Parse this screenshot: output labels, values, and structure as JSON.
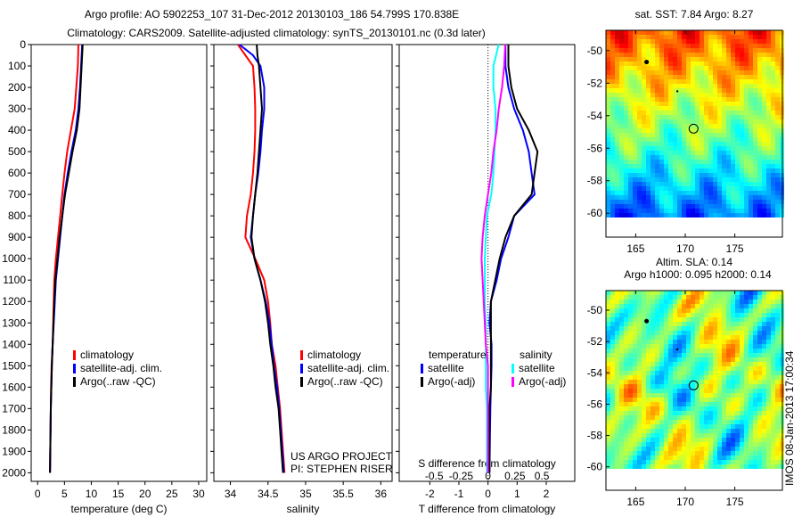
{
  "title_line1": "Argo profile: AO 5902253_107 31-Dec-2012 20130103_186 54.799S 170.838E",
  "title_line2": "Climatology: CARS2009. Satellite-adjusted climatology: synTS_20130101.nc (0.3d later)",
  "colors": {
    "clim": "#ff0000",
    "sat": "#0000ff",
    "argo": "#000000",
    "s_sat": "#00ffff",
    "s_argo": "#ff00ff"
  },
  "chart_data": [
    {
      "type": "line",
      "id": "temperature",
      "xlabel": "temperature (deg C)",
      "ylabel": "",
      "xlim": [
        -1.2,
        31.5
      ],
      "ylim": [
        2040,
        0
      ],
      "xticks": [
        0,
        5,
        10,
        15,
        20,
        25,
        30
      ],
      "yticks": [
        0,
        100,
        200,
        300,
        400,
        500,
        600,
        700,
        800,
        900,
        1000,
        1100,
        1200,
        1300,
        1400,
        1500,
        1600,
        1700,
        1800,
        1900,
        2000
      ],
      "depth": [
        0,
        100,
        200,
        300,
        400,
        500,
        600,
        700,
        800,
        900,
        1000,
        1100,
        1200,
        1300,
        1400,
        1500,
        1600,
        1700,
        1800,
        1900,
        2000
      ],
      "series": [
        {
          "name": "climatology",
          "color_key": "clim",
          "values": [
            7.6,
            7.5,
            7.2,
            6.9,
            6.2,
            5.5,
            5.0,
            4.6,
            4.2,
            3.8,
            3.4,
            3.1,
            3.0,
            2.9,
            2.8,
            2.6,
            2.5,
            2.45,
            2.4,
            2.35,
            2.3
          ]
        },
        {
          "name": "satellite-adj. clim.",
          "color_key": "sat",
          "values": [
            8.3,
            8.1,
            7.9,
            7.6,
            7.1,
            6.3,
            5.6,
            5.0,
            4.6,
            4.2,
            3.8,
            3.4,
            3.2,
            3.0,
            2.8,
            2.65,
            2.55,
            2.45,
            2.4,
            2.35,
            2.3
          ]
        },
        {
          "name": "Argo(..raw -QC)",
          "color_key": "argo",
          "values": [
            8.4,
            8.2,
            8.0,
            7.8,
            7.3,
            6.5,
            5.8,
            5.1,
            4.6,
            4.1,
            3.7,
            3.3,
            3.1,
            2.95,
            2.8,
            2.65,
            2.55,
            2.45,
            2.4,
            2.35,
            2.3
          ]
        }
      ],
      "legend": [
        "climatology",
        "satellite-adj. clim.",
        "Argo(..raw -QC)"
      ]
    },
    {
      "type": "line",
      "id": "salinity",
      "xlabel": "salinity",
      "xlim": [
        33.78,
        36.15
      ],
      "ylim": [
        2040,
        0
      ],
      "xticks": [
        "34",
        "34.5",
        "35",
        "35.5",
        "36"
      ],
      "depth": [
        0,
        50,
        100,
        200,
        300,
        400,
        500,
        600,
        700,
        800,
        900,
        1000,
        1100,
        1200,
        1300,
        1400,
        1500,
        1600,
        1700,
        1800,
        1900,
        2000
      ],
      "series": [
        {
          "name": "climatology",
          "color_key": "clim",
          "values": [
            34.1,
            34.2,
            34.3,
            34.32,
            34.33,
            34.33,
            34.32,
            34.3,
            34.27,
            34.22,
            34.2,
            34.33,
            34.45,
            34.5,
            34.53,
            34.55,
            34.6,
            34.63,
            34.66,
            34.68,
            34.7,
            34.72
          ]
        },
        {
          "name": "satellite-adj. clim.",
          "color_key": "sat",
          "values": [
            34.12,
            34.3,
            34.4,
            34.45,
            34.45,
            34.42,
            34.4,
            34.37,
            34.33,
            34.3,
            34.27,
            34.32,
            34.4,
            34.47,
            34.52,
            34.55,
            34.58,
            34.62,
            34.65,
            34.67,
            34.69,
            34.71
          ]
        },
        {
          "name": "Argo(..raw -QC)",
          "color_key": "argo",
          "values": [
            34.35,
            34.36,
            34.38,
            34.4,
            34.42,
            34.4,
            34.38,
            34.36,
            34.33,
            34.3,
            34.28,
            34.32,
            34.4,
            34.46,
            34.5,
            34.53,
            34.57,
            34.6,
            34.64,
            34.66,
            34.68,
            34.7
          ]
        }
      ],
      "legend": [
        "climatology",
        "satellite-adj. clim.",
        "Argo(..raw -QC)"
      ],
      "annotation": [
        "US ARGO PROJECT",
        "PI: STEPHEN RISER"
      ]
    },
    {
      "type": "line",
      "id": "difference",
      "xlabel": "T difference from climatology",
      "xlabel2": "S difference from climatology",
      "xlim": [
        -3.05,
        2.98
      ],
      "ylim": [
        2040,
        0
      ],
      "xticks": [
        "-2",
        "-1",
        "0",
        "1",
        "2"
      ],
      "s_xlim": [
        -0.5,
        0.5
      ],
      "s_xticks": [
        "-0.5",
        "-0.25",
        "0",
        "0.25",
        "0.5"
      ],
      "depth": [
        0,
        100,
        200,
        300,
        400,
        500,
        600,
        700,
        800,
        900,
        1000,
        1100,
        1200,
        1300,
        1400,
        1500,
        1600,
        1700,
        1800,
        1900,
        2000
      ],
      "series": [
        {
          "name": "T satellite",
          "color_key": "sat",
          "axis": "T",
          "values": [
            0.6,
            0.6,
            0.7,
            0.9,
            1.2,
            1.4,
            1.5,
            1.6,
            0.9,
            0.7,
            0.45,
            0.3,
            0.1,
            0.05,
            0.12,
            0.12,
            0.1,
            0.08,
            0.07,
            0.06,
            0.05
          ]
        },
        {
          "name": "T Argo(-adj)",
          "color_key": "argo",
          "axis": "T",
          "values": [
            0.7,
            0.7,
            0.8,
            1.0,
            1.4,
            1.7,
            1.6,
            1.5,
            0.9,
            0.6,
            0.4,
            0.25,
            0.1,
            0.1,
            0.1,
            0.1,
            0.1,
            0.05,
            0.05,
            0.05,
            0.05
          ]
        },
        {
          "name": "S satellite",
          "color_key": "s_sat",
          "axis": "S",
          "values": [
            0.1,
            0.05,
            0.05,
            0.07,
            0.07,
            0.06,
            0.05,
            0.03,
            -0.01,
            -0.02,
            -0.03,
            -0.03,
            -0.03,
            -0.02,
            -0.02,
            -0.02,
            -0.02,
            -0.01,
            -0.01,
            -0.01,
            -0.01
          ]
        },
        {
          "name": "S Argo(-adj)",
          "color_key": "s_argo",
          "axis": "S",
          "values": [
            0.16,
            0.15,
            0.13,
            0.1,
            0.08,
            0.05,
            0.03,
            0.0,
            -0.03,
            -0.05,
            -0.06,
            -0.05,
            -0.04,
            -0.03,
            -0.02,
            0.0,
            0.0,
            0.0,
            0.0,
            0.0,
            0.0
          ]
        }
      ],
      "legend": {
        "temperature_title": "temperature",
        "salinity_title": "salinity",
        "items": [
          "satellite",
          "Argo(-adj)",
          "satellite",
          "Argo(-adj)"
        ]
      }
    }
  ],
  "maps": [
    {
      "title": [
        "sat. SST: 7.84  Argo: 8.27"
      ],
      "xticks": [
        "165",
        "170",
        "175"
      ],
      "yticks": [
        "-50",
        "-52",
        "-54",
        "-56",
        "-58",
        "-60"
      ]
    },
    {
      "title": [
        "Altim. SLA: 0.14",
        "Argo h1000: 0.095 h2000: 0.14"
      ],
      "xticks": [
        "165",
        "170",
        "175"
      ],
      "yticks": [
        "-50",
        "-52",
        "-54",
        "-56",
        "-58",
        "-60"
      ]
    }
  ],
  "float_position": {
    "lon": 170.838,
    "lat": -54.799
  },
  "stamp": "IMOS 08-Jan-2013 17:00:34"
}
